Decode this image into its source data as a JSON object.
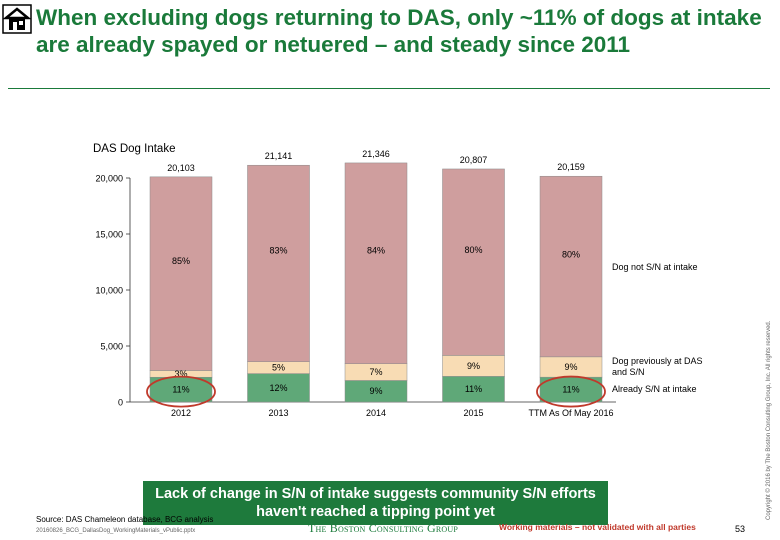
{
  "header": {
    "title": "When excluding dogs returning to DAS, only ~11% of dogs at intake are already spayed or netuered – and steady since 2011"
  },
  "chart_data": {
    "type": "bar",
    "stacked": true,
    "chart_title": "DAS Dog Intake",
    "categories": [
      "2012",
      "2013",
      "2014",
      "2015",
      "TTM As Of May 2016"
    ],
    "totals": [
      20103,
      21141,
      21346,
      20807,
      20159
    ],
    "total_labels": [
      "20,103",
      "21,141",
      "21,346",
      "20,807",
      "20,159"
    ],
    "series": [
      {
        "name": "Already S/N at intake",
        "percents": [
          11,
          12,
          9,
          11,
          11
        ],
        "labels": [
          "11%",
          "12%",
          "9%",
          "11%",
          "11%"
        ],
        "color": "#5fa878"
      },
      {
        "name": "Dog previously at DAS and S/N",
        "percents": [
          3,
          5,
          7,
          9,
          9
        ],
        "labels": [
          "3%",
          "5%",
          "7%",
          "9%",
          "9%"
        ],
        "color": "#f8dcb4"
      },
      {
        "name": "Dog not S/N at intake",
        "percents": [
          85,
          83,
          84,
          80,
          80
        ],
        "labels": [
          "85%",
          "83%",
          "84%",
          "80%",
          "80%"
        ],
        "color": "#cf9e9e"
      }
    ],
    "legend_labels": [
      "Dog not S/N at intake",
      "Dog previously at DAS and S/N",
      "Already S/N at intake"
    ],
    "yticks": [
      "0",
      "5,000",
      "10,000",
      "15,000",
      "20,000"
    ],
    "ytick_values": [
      0,
      5000,
      10000,
      15000,
      20000
    ],
    "ylim": [
      0,
      20000
    ],
    "highlight_color": "#c0392b",
    "highlighted_categories": [
      "2012",
      "TTM As Of May 2016"
    ]
  },
  "callout": {
    "text": "Lack of change in S/N of intake suggests community S/N efforts haven't reached a tipping point yet"
  },
  "footer": {
    "source": "Source: DAS Chameleon database, BCG analysis",
    "filename": "20160826_BCG_DallasDog_WorkingMaterials_vPublic.pptx",
    "brand": "The Boston Consulting Group",
    "working": "Working materials – not validated with all parties",
    "page": "53",
    "copyright": "Copyright © 2016 by The Boston Consulting Group, Inc. All rights reserved."
  },
  "icons": {
    "logo": "house-shelter-icon"
  }
}
